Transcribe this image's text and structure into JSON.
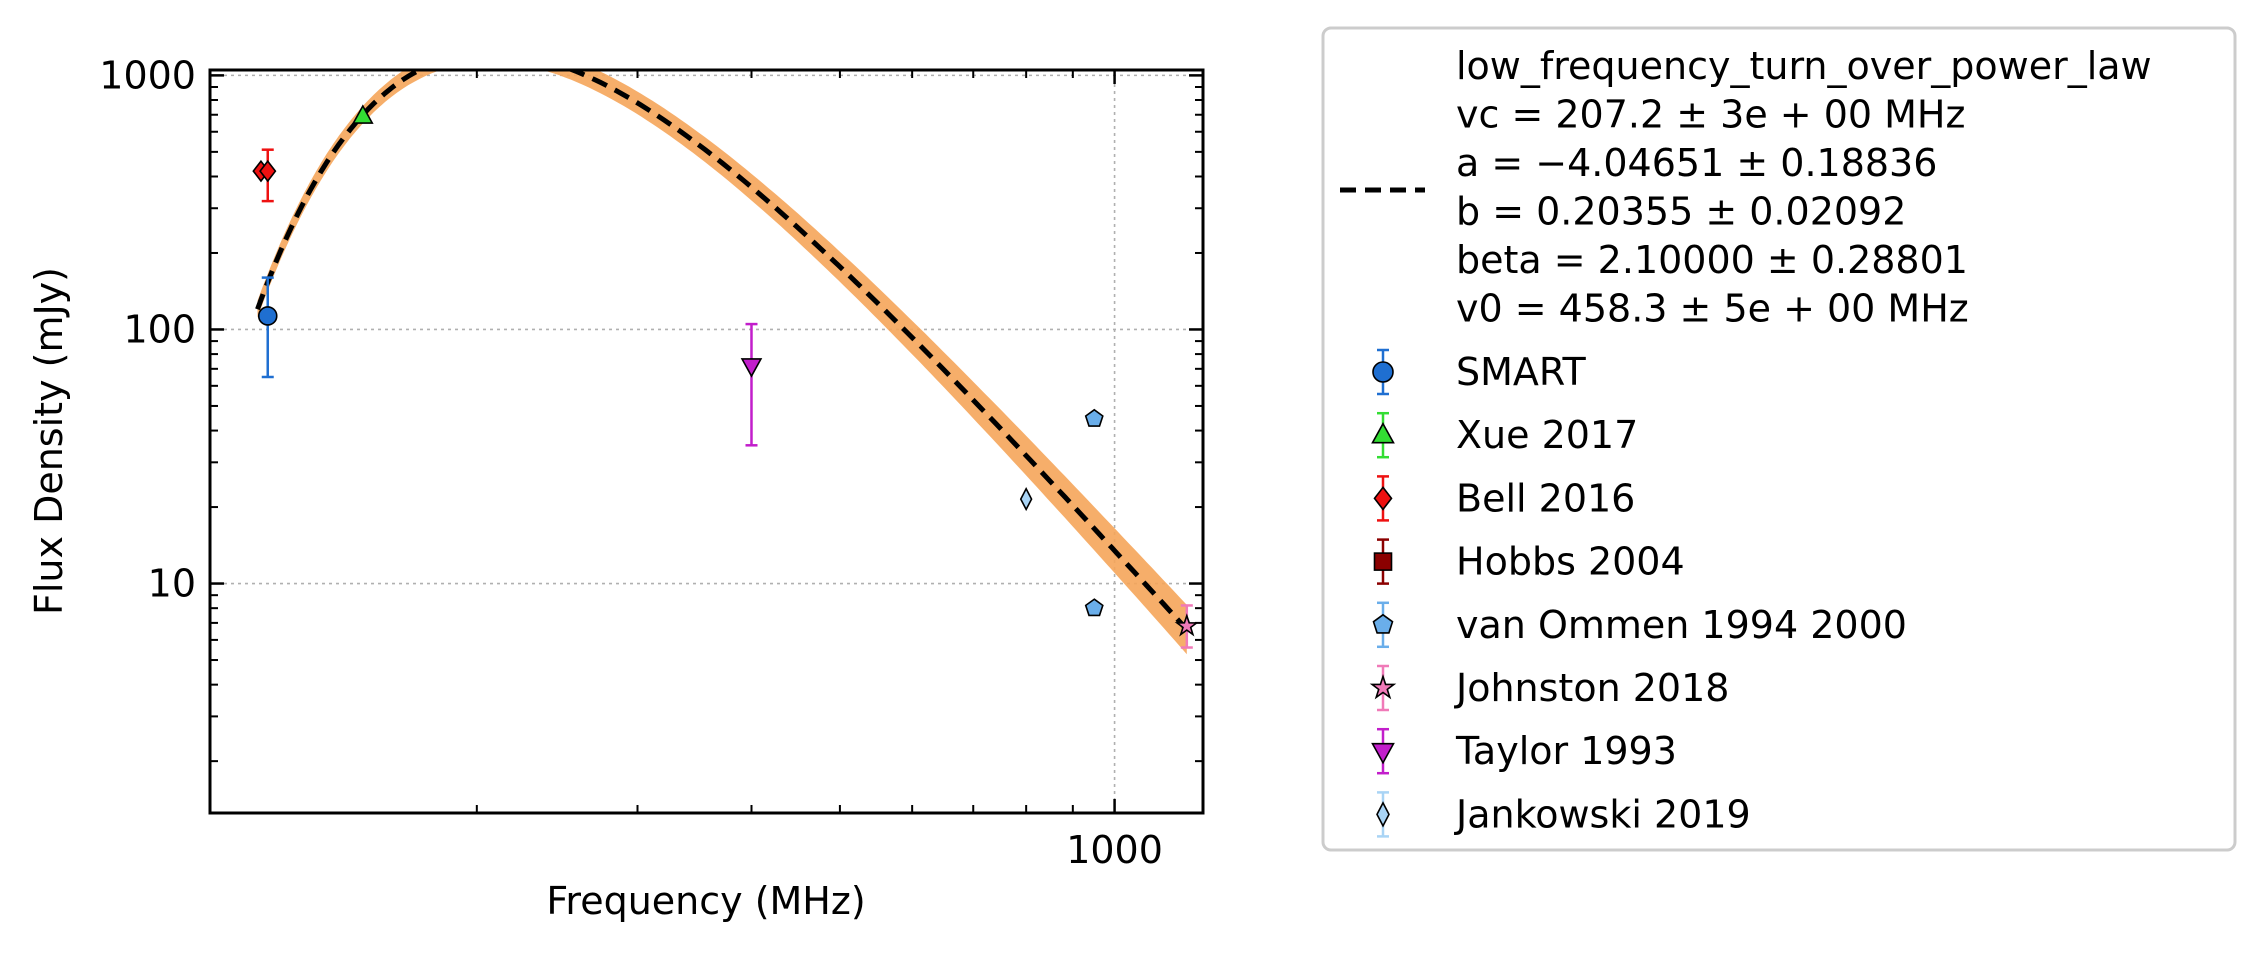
{
  "chart_data": {
    "type": "scatter",
    "xlabel": "Frequency (MHz)",
    "ylabel": "Flux Density (mJy)",
    "xscale": "log",
    "yscale": "log",
    "xlim": [
      102,
      1250
    ],
    "ylim": [
      1.25,
      1050
    ],
    "x_major_ticks": [
      {
        "value": 1000,
        "label": "1000"
      }
    ],
    "y_major_ticks": [
      {
        "value": 10,
        "label": "10"
      },
      {
        "value": 100,
        "label": "100"
      },
      {
        "value": 1000,
        "label": "1000"
      }
    ],
    "grid": true,
    "legend_position": "outside-right",
    "fit": {
      "model": "low_frequency_turn_over_power_law",
      "params": {
        "vc": 207.2,
        "a": -4.04651,
        "b": 0.20355,
        "beta": 2.1,
        "v0": 458.3
      },
      "x_range": [
        115,
        1200
      ],
      "line_color": "#000000",
      "band_color": "#f5a55a",
      "band_relative_width_low_freq": 0.08,
      "band_relative_width_high_freq": 0.25,
      "legend_lines": [
        "low_frequency_turn_over_power_law",
        "vc = 207.2 ± 3e + 00 MHz",
        "a = −4.04651 ± 0.18836",
        "b = 0.20355 ± 0.02092",
        "beta = 2.10000 ± 0.28801",
        "v0 = 458.3 ± 5e + 00 MHz"
      ]
    },
    "series": [
      {
        "name": "SMART",
        "marker": "circle",
        "color": "#1f6fd1",
        "points": [
          {
            "x": 118,
            "y": 113,
            "yerr_low": 65,
            "yerr_high": 160
          }
        ]
      },
      {
        "name": "Xue 2017",
        "marker": "triangle-up",
        "color": "#33dd33",
        "points": [
          {
            "x": 150,
            "y": 690
          }
        ]
      },
      {
        "name": "Bell 2016",
        "marker": "diamond",
        "color": "#ee1111",
        "points": [
          {
            "x": 116,
            "y": 420
          },
          {
            "x": 118,
            "y": 420,
            "yerr_low": 320,
            "yerr_high": 510
          }
        ]
      },
      {
        "name": "Hobbs 2004",
        "marker": "square",
        "color": "#8b0000",
        "points": []
      },
      {
        "name": "van Ommen 1994 2000",
        "marker": "pentagon",
        "color": "#6aaeea",
        "points": [
          {
            "x": 950,
            "y": 44.5
          },
          {
            "x": 950,
            "y": 8.0
          }
        ]
      },
      {
        "name": "Johnston 2018",
        "marker": "star",
        "color": "#f07ab8",
        "points": [
          {
            "x": 1200,
            "y": 6.8,
            "yerr_low": 5.6,
            "yerr_high": 8.2
          }
        ]
      },
      {
        "name": "Taylor 1993",
        "marker": "triangle-down",
        "color": "#c21ecb",
        "points": [
          {
            "x": 400,
            "y": 72,
            "yerr_low": 35,
            "yerr_high": 105
          }
        ]
      },
      {
        "name": "Jankowski 2019",
        "marker": "thin-diamond",
        "color": "#a9d4f5",
        "points": [
          {
            "x": 800,
            "y": 21.5
          }
        ]
      }
    ]
  }
}
